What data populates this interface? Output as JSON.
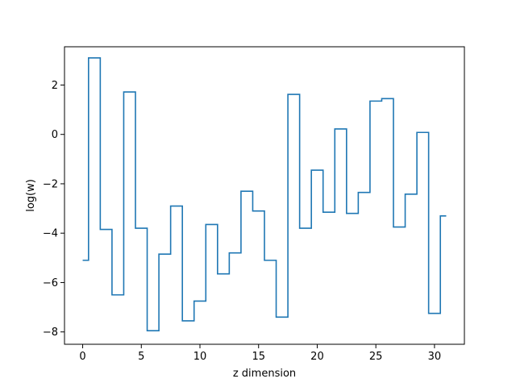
{
  "chart_data": {
    "type": "line",
    "drawstyle": "steps-mid",
    "title": "",
    "xlabel": "z dimension",
    "ylabel": "log(w)",
    "xlim": [
      -1.55,
      32.55
    ],
    "ylim": [
      -8.5,
      3.55
    ],
    "xticks": [
      0,
      5,
      10,
      15,
      20,
      25,
      30
    ],
    "yticks": [
      -8,
      -6,
      -4,
      -2,
      0,
      2
    ],
    "grid": false,
    "line_color": "#1f77b4",
    "x": [
      0,
      1,
      2,
      3,
      4,
      5,
      6,
      7,
      8,
      9,
      10,
      11,
      12,
      13,
      14,
      15,
      16,
      17,
      18,
      19,
      20,
      21,
      22,
      23,
      24,
      25,
      26,
      27,
      28,
      29,
      30,
      31
    ],
    "values": [
      -5.1,
      3.1,
      -3.85,
      -6.5,
      1.72,
      -3.8,
      -7.95,
      -4.85,
      -2.9,
      -7.55,
      -6.75,
      -3.65,
      -5.65,
      -4.8,
      -2.3,
      -3.1,
      -5.1,
      -7.4,
      1.62,
      -3.8,
      -1.45,
      -3.15,
      0.22,
      -3.2,
      -2.35,
      1.35,
      1.45,
      -3.75,
      -2.42,
      0.08,
      -7.25,
      -3.3
    ]
  }
}
